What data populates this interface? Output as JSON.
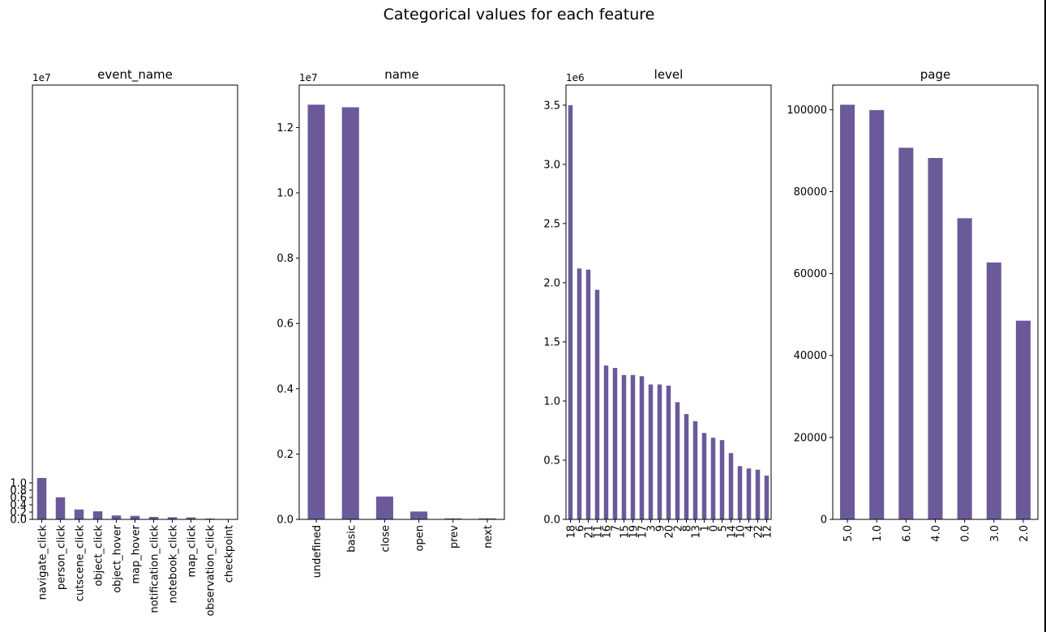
{
  "figure": {
    "suptitle": "Categorical values for each feature"
  },
  "colors": {
    "bar": "#6a5a9a",
    "axis": "#000000",
    "background": "#ffffff"
  },
  "chart_data": [
    {
      "type": "bar",
      "title": "event_name",
      "xlabel": "",
      "ylabel": "",
      "offset_label": "1e7",
      "scale": 10000000,
      "ylim": [
        0,
        11.9
      ],
      "yticks": [
        0,
        0.2,
        0.4,
        0.6,
        0.8,
        1.0
      ],
      "ytick_labels": [
        "0.0",
        "0.2",
        "0.4",
        "0.6",
        "0.8",
        "1.0"
      ],
      "categories": [
        "navigate_click",
        "person_click",
        "cutscene_click",
        "object_click",
        "object_hover",
        "map_hover",
        "notification_click",
        "notebook_click",
        "map_click",
        "observation_click",
        "checkpoint"
      ],
      "values": [
        11350000,
        6050000,
        2700000,
        2200000,
        1070000,
        960000,
        670000,
        580000,
        530000,
        220000,
        80000
      ]
    },
    {
      "type": "bar",
      "title": "name",
      "xlabel": "",
      "ylabel": "",
      "offset_label": "1e7",
      "scale": 10000000,
      "ylim": [
        0,
        1.33
      ],
      "yticks": [
        0,
        0.2,
        0.4,
        0.6,
        0.8,
        1.0,
        1.2
      ],
      "ytick_labels": [
        "0.0",
        "0.2",
        "0.4",
        "0.6",
        "0.8",
        "1.0",
        "1.2"
      ],
      "categories": [
        "undefined",
        "basic",
        "close",
        "open",
        "prev",
        "next"
      ],
      "values": [
        12700000,
        12620000,
        700000,
        240000,
        30000,
        30000
      ]
    },
    {
      "type": "bar",
      "title": "level",
      "xlabel": "",
      "ylabel": "",
      "offset_label": "1e6",
      "scale": 1000000,
      "ylim": [
        0,
        3.67
      ],
      "yticks": [
        0,
        0.5,
        1.0,
        1.5,
        2.0,
        2.5,
        3.0,
        3.5
      ],
      "ytick_labels": [
        "0.0",
        "0.5",
        "1.0",
        "1.5",
        "2.0",
        "2.5",
        "3.0",
        "3.5"
      ],
      "categories": [
        "18",
        "6",
        "21",
        "11",
        "16",
        "7",
        "15",
        "19",
        "17",
        "3",
        "9",
        "20",
        "2",
        "8",
        "13",
        "1",
        "0",
        "5",
        "14",
        "10",
        "4",
        "22",
        "12"
      ],
      "values": [
        3500000,
        2120000,
        2110000,
        1940000,
        1300000,
        1280000,
        1220000,
        1220000,
        1210000,
        1140000,
        1140000,
        1130000,
        990000,
        890000,
        830000,
        730000,
        690000,
        670000,
        560000,
        450000,
        430000,
        420000,
        370000
      ]
    },
    {
      "type": "bar",
      "title": "page",
      "xlabel": "",
      "ylabel": "",
      "offset_label": "",
      "scale": 1,
      "ylim": [
        0,
        106000
      ],
      "yticks": [
        0,
        20000,
        40000,
        60000,
        80000,
        100000
      ],
      "ytick_labels": [
        "0",
        "20000",
        "40000",
        "60000",
        "80000",
        "100000"
      ],
      "categories": [
        "5.0",
        "1.0",
        "6.0",
        "4.0",
        "0.0",
        "3.0",
        "2.0"
      ],
      "values": [
        101200,
        99900,
        90700,
        88200,
        73500,
        62700,
        48500
      ]
    }
  ]
}
